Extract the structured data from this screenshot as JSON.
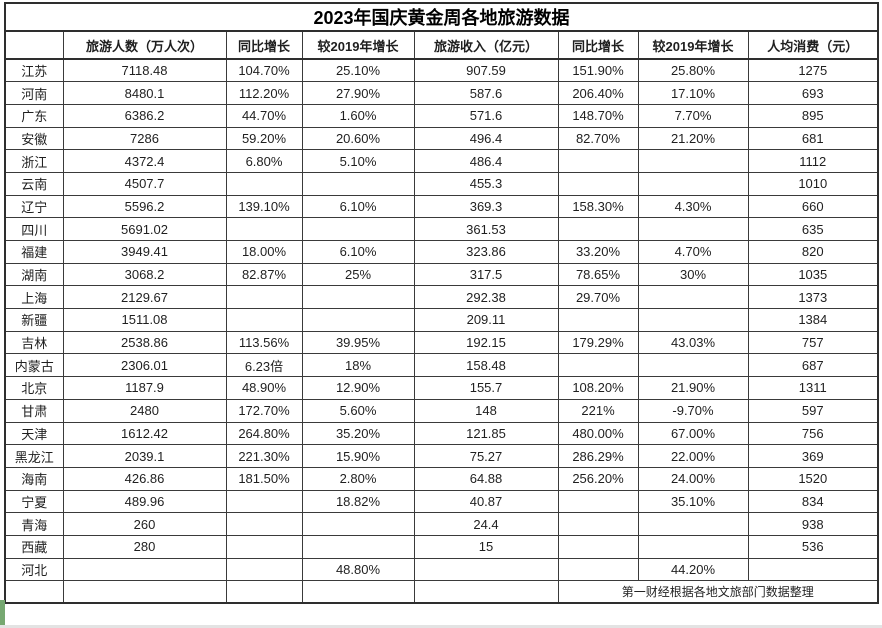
{
  "title": "2023年国庆黄金周各地旅游数据",
  "columns": [
    "",
    "旅游人数（万人次）",
    "同比增长",
    "较2019年增长",
    "旅游收入（亿元）",
    "同比增长",
    "较2019年增长",
    "人均消费（元）"
  ],
  "rows": [
    {
      "region": "江苏",
      "values": [
        "7118.48",
        "104.70%",
        "25.10%",
        "907.59",
        "151.90%",
        "25.80%",
        "1275"
      ]
    },
    {
      "region": "河南",
      "values": [
        "8480.1",
        "112.20%",
        "27.90%",
        "587.6",
        "206.40%",
        "17.10%",
        "693"
      ]
    },
    {
      "region": "广东",
      "values": [
        "6386.2",
        "44.70%",
        "1.60%",
        "571.6",
        "148.70%",
        "7.70%",
        "895"
      ]
    },
    {
      "region": "安徽",
      "values": [
        "7286",
        "59.20%",
        "20.60%",
        "496.4",
        "82.70%",
        "21.20%",
        "681"
      ]
    },
    {
      "region": "浙江",
      "values": [
        "4372.4",
        "6.80%",
        "5.10%",
        "486.4",
        "",
        "",
        "1112"
      ]
    },
    {
      "region": "云南",
      "values": [
        "4507.7",
        "",
        "",
        "455.3",
        "",
        "",
        "1010"
      ]
    },
    {
      "region": "辽宁",
      "values": [
        "5596.2",
        "139.10%",
        "6.10%",
        "369.3",
        "158.30%",
        "4.30%",
        "660"
      ]
    },
    {
      "region": "四川",
      "values": [
        "5691.02",
        "",
        "",
        "361.53",
        "",
        "",
        "635"
      ]
    },
    {
      "region": "福建",
      "values": [
        "3949.41",
        "18.00%",
        "6.10%",
        "323.86",
        "33.20%",
        "4.70%",
        "820"
      ]
    },
    {
      "region": "湖南",
      "values": [
        "3068.2",
        "82.87%",
        "25%",
        "317.5",
        "78.65%",
        "30%",
        "1035"
      ]
    },
    {
      "region": "上海",
      "values": [
        "2129.67",
        "",
        "",
        "292.38",
        "29.70%",
        "",
        "1373"
      ]
    },
    {
      "region": "新疆",
      "values": [
        "1511.08",
        "",
        "",
        "209.11",
        "",
        "",
        "1384"
      ]
    },
    {
      "region": "吉林",
      "values": [
        "2538.86",
        "113.56%",
        "39.95%",
        "192.15",
        "179.29%",
        "43.03%",
        "757"
      ]
    },
    {
      "region": "内蒙古",
      "values": [
        "2306.01",
        "6.23倍",
        "18%",
        "158.48",
        "",
        "",
        "687"
      ]
    },
    {
      "region": "北京",
      "values": [
        "1187.9",
        "48.90%",
        "12.90%",
        "155.7",
        "108.20%",
        "21.90%",
        "1311"
      ]
    },
    {
      "region": "甘肃",
      "values": [
        "2480",
        "172.70%",
        "5.60%",
        "148",
        "221%",
        "-9.70%",
        "597"
      ]
    },
    {
      "region": "天津",
      "values": [
        "1612.42",
        "264.80%",
        "35.20%",
        "121.85",
        "480.00%",
        "67.00%",
        "756"
      ]
    },
    {
      "region": "黑龙江",
      "values": [
        "2039.1",
        "221.30%",
        "15.90%",
        "75.27",
        "286.29%",
        "22.00%",
        "369"
      ]
    },
    {
      "region": "海南",
      "values": [
        "426.86",
        "181.50%",
        "2.80%",
        "64.88",
        "256.20%",
        "24.00%",
        "1520"
      ]
    },
    {
      "region": "宁夏",
      "values": [
        "489.96",
        "",
        "18.82%",
        "40.87",
        "",
        "35.10%",
        "834"
      ]
    },
    {
      "region": "青海",
      "values": [
        "260",
        "",
        "",
        "24.4",
        "",
        "",
        "938"
      ]
    },
    {
      "region": "西藏",
      "values": [
        "280",
        "",
        "",
        "15",
        "",
        "",
        "536"
      ]
    },
    {
      "region": "河北",
      "values": [
        "",
        "",
        "48.80%",
        "",
        "",
        "44.20%",
        ""
      ]
    }
  ],
  "footer": {
    "note": "第一财经根据各地文旅部门数据整理"
  },
  "selection": {
    "color": "#76a871",
    "location": "footer-first-cell"
  },
  "colors": {
    "border": "#3a3a3a",
    "text": "#1f1f1f",
    "background": "#ffffff"
  }
}
